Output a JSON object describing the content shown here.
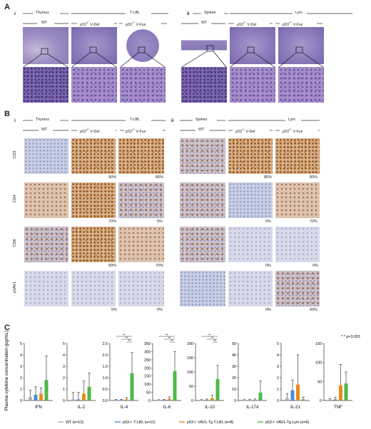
{
  "panel_labels": {
    "A": "A",
    "B": "B",
    "C": "C"
  },
  "sub_labels": {
    "i": "i",
    "ii": "ii"
  },
  "section_i": {
    "tissue": "Thymus",
    "disease": "T-LBL"
  },
  "section_ii": {
    "tissue": "Spleen",
    "disease": "Lym"
  },
  "columns": {
    "wt": "WT",
    "del": "V-Del",
    "fus": "V-Fus",
    "genotype_sup": "-/-",
    "genotype": "p53"
  },
  "ihc_rows": [
    {
      "marker": "CD3",
      "pct": [
        "",
        "90%",
        "80%",
        "",
        "80%",
        "80%"
      ]
    },
    {
      "marker": "CD4",
      "pct": [
        "",
        "70%",
        "5%",
        "",
        "0%",
        "70%"
      ]
    },
    {
      "marker": "CD8",
      "pct": [
        "",
        "90%",
        "70%",
        "",
        "0%",
        "0%"
      ]
    },
    {
      "marker": "pVAV1",
      "pct": [
        "",
        "5%",
        "0%",
        "",
        "0%",
        "60%"
      ]
    }
  ],
  "chart_data": {
    "type": "bar",
    "ylabel": "Plasma cytokine concentration (pg/mL)",
    "significance_note": "* * p<0.001",
    "series_names": [
      "WT (n=13)",
      "p53-/- T-LBL (n=11)",
      "p53-/- VAV1-Tg T-LBL (n=8)",
      "p53-/- VAV1-Tg Lym (n=6)"
    ],
    "colors": [
      "#b0b0b0",
      "#4a8fd6",
      "#e98a1c",
      "#4fb84a"
    ],
    "panels": [
      {
        "cytokine": "IFN",
        "ylim": [
          0,
          5
        ],
        "ticks": [
          0,
          1,
          2,
          3,
          4,
          5
        ],
        "means": [
          0.3,
          0.5,
          0.6,
          1.8
        ],
        "errors": [
          0.6,
          0.7,
          0.5,
          2.1
        ]
      },
      {
        "cytokine": "IL-2",
        "ylim": [
          0,
          5
        ],
        "ticks": [
          0,
          1,
          2,
          3,
          4,
          5
        ],
        "means": [
          0.1,
          0.1,
          0.6,
          1.2
        ],
        "errors": [
          0.6,
          0.6,
          1.1,
          1.2
        ]
      },
      {
        "cytokine": "IL-4",
        "ylim": [
          0,
          2.5
        ],
        "ticks": [
          0.0,
          0.5,
          1.0,
          1.5,
          2.0,
          2.5
        ],
        "means": [
          0.02,
          0.02,
          0.05,
          1.2
        ],
        "errors": [
          0.03,
          0.03,
          0.08,
          0.9
        ],
        "sig": true
      },
      {
        "cytokine": "IL-6",
        "ylim": [
          0,
          350
        ],
        "ticks": [
          0,
          50,
          100,
          150,
          200,
          250,
          300,
          350
        ],
        "means": [
          2,
          3,
          10,
          180
        ],
        "errors": [
          3,
          4,
          12,
          120
        ],
        "sig": true
      },
      {
        "cytokine": "IL-10",
        "ylim": [
          0,
          200
        ],
        "ticks": [
          0,
          50,
          100,
          150,
          200
        ],
        "means": [
          1,
          2,
          8,
          75
        ],
        "errors": [
          2,
          3,
          10,
          48
        ],
        "sig": true
      },
      {
        "cytokine": "IL-17A",
        "ylim": [
          0,
          50
        ],
        "ticks": [
          0,
          10,
          20,
          30,
          40,
          50
        ],
        "means": [
          0.2,
          0.3,
          0.5,
          7
        ],
        "errors": [
          0.5,
          0.6,
          0.8,
          10
        ]
      },
      {
        "cytokine": "IL-21",
        "ylim": [
          0,
          5
        ],
        "ticks": [
          0,
          1,
          2,
          3,
          4,
          5
        ],
        "means": [
          0.2,
          0.9,
          1.4,
          0.1
        ],
        "errors": [
          0.4,
          0.9,
          2.6,
          0.2
        ]
      },
      {
        "cytokine": "TNF",
        "ylim": [
          0,
          150
        ],
        "ticks": [
          0,
          50,
          100,
          150
        ],
        "means": [
          2,
          3,
          40,
          45
        ],
        "errors": [
          3,
          5,
          55,
          30
        ]
      }
    ]
  }
}
